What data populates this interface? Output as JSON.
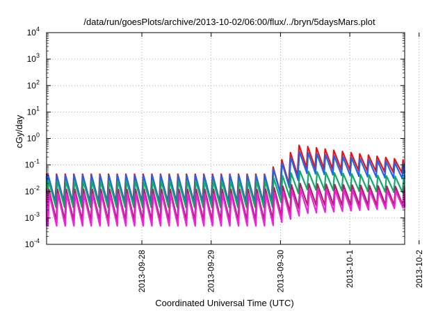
{
  "chart_data": {
    "type": "line",
    "title": "/data/run/goesPlots/archive/2013-10-02/06:00/flux/../bryn/5daysMars.plot",
    "xlabel": "Coordinated Universal Time (UTC)",
    "ylabel": "cGy/day",
    "y_scale": "log",
    "ylim": [
      0.0001,
      10000
    ],
    "y_ticks": [
      {
        "value": 0.0001,
        "base": "10",
        "exp": "-4"
      },
      {
        "value": 0.001,
        "base": "10",
        "exp": "-3"
      },
      {
        "value": 0.01,
        "base": "10",
        "exp": "-2"
      },
      {
        "value": 0.1,
        "base": "10",
        "exp": "-1"
      },
      {
        "value": 1,
        "base": "10",
        "exp": "0"
      },
      {
        "value": 10,
        "base": "10",
        "exp": "1"
      },
      {
        "value": 100,
        "base": "10",
        "exp": "2"
      },
      {
        "value": 1000,
        "base": "10",
        "exp": "3"
      },
      {
        "value": 10000,
        "base": "10",
        "exp": "4"
      }
    ],
    "xlim": [
      "2013-09-27 03:00",
      "2013-10-02 07:00"
    ],
    "x_ticks": [
      "2013-09-28",
      "2013-09-29",
      "2013-09-30",
      "2013-10-1",
      "2013-10-2"
    ],
    "grid": true,
    "legend": "none",
    "sawtooth_period_hours": 3,
    "series": [
      {
        "color": "#ee1111",
        "quiet_peak": 0.045,
        "quiet_trough": 0.004,
        "event_peak": 0.55,
        "event_trough": 0.08,
        "end_peak": 0.15,
        "end_trough": 0.05
      },
      {
        "color": "#1a66ee",
        "quiet_peak": 0.04,
        "quiet_trough": 0.0035,
        "event_peak": 0.32,
        "event_trough": 0.05,
        "end_peak": 0.11,
        "end_trough": 0.03
      },
      {
        "color": "#11aa66",
        "quiet_peak": 0.025,
        "quiet_trough": 0.0025,
        "event_peak": 0.06,
        "event_trough": 0.012,
        "end_peak": 0.035,
        "end_trough": 0.009
      },
      {
        "color": "#aa2266",
        "quiet_peak": 0.012,
        "quiet_trough": 0.0008,
        "event_peak": 0.02,
        "event_trough": 0.003,
        "end_peak": 0.015,
        "end_trough": 0.003
      },
      {
        "color": "#ee22dd",
        "quiet_peak": 0.008,
        "quiet_trough": 0.0005,
        "event_peak": 0.012,
        "event_trough": 0.0015,
        "end_peak": 0.01,
        "end_trough": 0.0025
      }
    ],
    "event_start": "2013-09-30 06:00",
    "event_peak_time": "2013-09-30 18:00"
  }
}
